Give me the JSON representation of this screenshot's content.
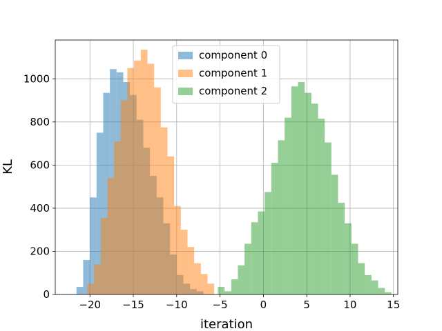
{
  "chart_data": {
    "type": "histogram",
    "xlabel": "iteration",
    "ylabel": "KL",
    "xlim": [
      -24,
      15.5
    ],
    "ylim": [
      0,
      1180
    ],
    "xticks": [
      -20,
      -15,
      -10,
      -5,
      0,
      5,
      10,
      15
    ],
    "yticks": [
      0,
      200,
      400,
      600,
      800,
      1000
    ],
    "grid": true,
    "legend_position": "top-center",
    "bin_width": 0.77,
    "series": [
      {
        "name": "component 0",
        "color": "#1f77b4",
        "opacity": 0.5,
        "bin_start": -21.55,
        "counts": [
          35,
          160,
          450,
          750,
          935,
          1045,
          1030,
          985,
          925,
          810,
          680,
          550,
          450,
          330,
          185,
          90,
          50,
          25,
          15
        ]
      },
      {
        "name": "component 1",
        "color": "#ff7f0e",
        "opacity": 0.5,
        "bin_start": -20.3,
        "counts": [
          50,
          140,
          355,
          540,
          710,
          900,
          1050,
          1085,
          1135,
          1070,
          960,
          775,
          640,
          410,
          300,
          220,
          145,
          95,
          50
        ]
      },
      {
        "name": "component 2",
        "color": "#2ca02c",
        "opacity": 0.5,
        "bin_start": -5.25,
        "counts": [
          35,
          15,
          70,
          135,
          235,
          335,
          385,
          475,
          610,
          715,
          820,
          965,
          985,
          935,
          885,
          815,
          705,
          555,
          425,
          330,
          235,
          145,
          90,
          65,
          30,
          10
        ]
      }
    ]
  }
}
